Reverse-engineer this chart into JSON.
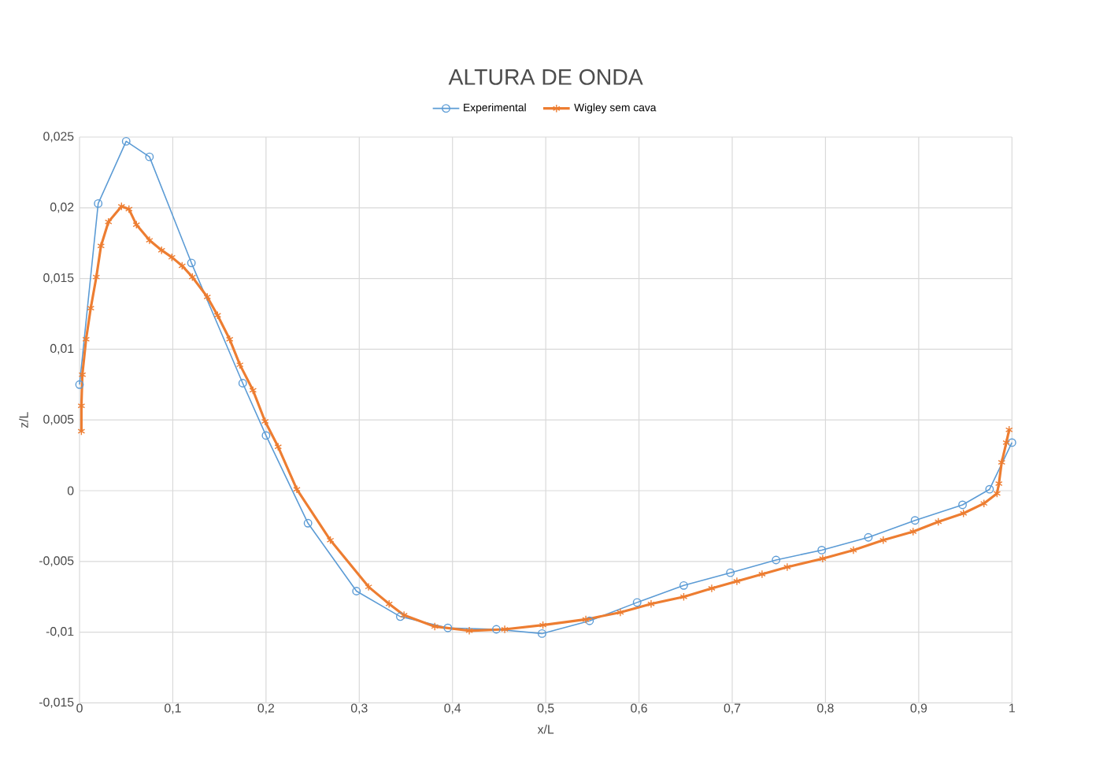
{
  "chart_data": {
    "type": "line",
    "title": "ALTURA DE ONDA",
    "xlabel": "x/L",
    "ylabel": "z/L",
    "xlim": [
      0,
      1
    ],
    "ylim": [
      -0.015,
      0.025
    ],
    "xticks": [
      0,
      {
        "value": 0.1,
        "label": "0,1"
      },
      {
        "value": 0.2,
        "label": "0,2"
      },
      {
        "value": 0.3,
        "label": "0,3"
      },
      {
        "value": 0.4,
        "label": "0,4"
      },
      {
        "value": 0.5,
        "label": "0,5"
      },
      {
        "value": 0.6,
        "label": "0,6"
      },
      {
        "value": 0.7,
        "label": "0,7"
      },
      {
        "value": 0.8,
        "label": "0,8"
      },
      {
        "value": 0.9,
        "label": "0,9"
      },
      1
    ],
    "yticks": [
      {
        "value": -0.015,
        "label": "-0,015"
      },
      {
        "value": -0.01,
        "label": "-0,01"
      },
      {
        "value": -0.005,
        "label": "-0,005"
      },
      0,
      {
        "value": 0.005,
        "label": "0,005"
      },
      {
        "value": 0.01,
        "label": "0,01"
      },
      {
        "value": 0.015,
        "label": "0,015"
      },
      {
        "value": 0.02,
        "label": "0,02"
      },
      {
        "value": 0.025,
        "label": "0,025"
      }
    ],
    "grid": true,
    "legend": "top",
    "series": [
      {
        "name": "Experimental",
        "color": "#5b9bd5",
        "marker": "circle",
        "x": [
          0,
          0.02,
          0.05,
          0.075,
          0.12,
          0.175,
          0.2,
          0.245,
          0.297,
          0.344,
          0.395,
          0.447,
          0.496,
          0.547,
          0.598,
          0.648,
          0.698,
          0.747,
          0.796,
          0.846,
          0.896,
          0.947,
          0.976,
          1
        ],
        "values": [
          0.0075,
          0.0203,
          0.0247,
          0.0236,
          0.0161,
          0.0076,
          0.0039,
          -0.0023,
          -0.0071,
          -0.0089,
          -0.0097,
          -0.0098,
          -0.0101,
          -0.0092,
          -0.0079,
          -0.0067,
          -0.0058,
          -0.0049,
          -0.0042,
          -0.0033,
          -0.0021,
          -0.001,
          0.0001,
          0.0034
        ]
      },
      {
        "name": "Wigley sem cava",
        "color": "#ed7d31",
        "marker": "cross",
        "x": [
          0.002,
          0.002,
          0.003,
          0.007,
          0.012,
          0.018,
          0.023,
          0.031,
          0.045,
          0.053,
          0.061,
          0.075,
          0.088,
          0.099,
          0.11,
          0.121,
          0.137,
          0.148,
          0.161,
          0.172,
          0.186,
          0.199,
          0.213,
          0.233,
          0.269,
          0.31,
          0.332,
          0.348,
          0.381,
          0.418,
          0.456,
          0.497,
          0.543,
          0.58,
          0.613,
          0.648,
          0.678,
          0.705,
          0.732,
          0.759,
          0.797,
          0.83,
          0.862,
          0.894,
          0.921,
          0.948,
          0.97,
          0.984,
          0.986,
          0.989,
          0.994,
          0.997
        ],
        "values": [
          0.0042,
          0.006,
          0.0082,
          0.0107,
          0.0129,
          0.0151,
          0.0173,
          0.019,
          0.0201,
          0.0199,
          0.0188,
          0.0177,
          0.017,
          0.0165,
          0.0159,
          0.0151,
          0.0137,
          0.0124,
          0.0107,
          0.0089,
          0.0071,
          0.0049,
          0.0031,
          0.0001,
          -0.0035,
          -0.0068,
          -0.008,
          -0.0088,
          -0.0096,
          -0.0099,
          -0.0098,
          -0.0095,
          -0.0091,
          -0.0086,
          -0.008,
          -0.0075,
          -0.0069,
          -0.0064,
          -0.0059,
          -0.0054,
          -0.0048,
          -0.0042,
          -0.0035,
          -0.0029,
          -0.0022,
          -0.0016,
          -0.0009,
          -0.0002,
          0.0005,
          0.002,
          0.0034,
          0.0043
        ]
      }
    ]
  }
}
